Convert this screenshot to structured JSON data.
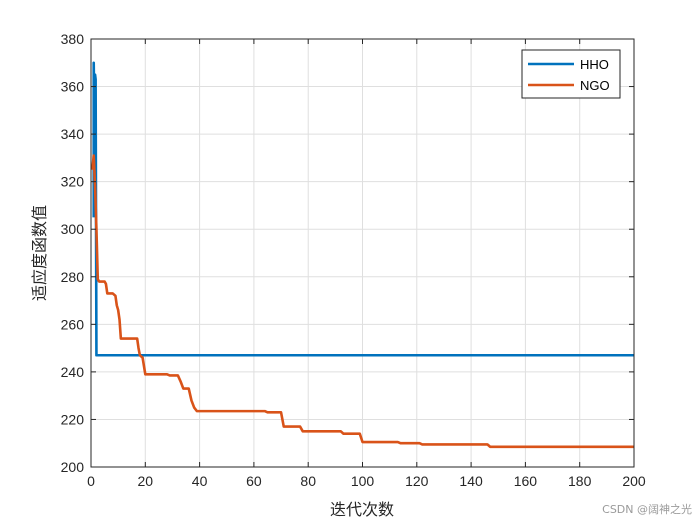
{
  "chart_data": {
    "type": "line",
    "title": "",
    "xlabel": "迭代次数",
    "ylabel": "适应度函数值",
    "xlim": [
      0,
      200
    ],
    "ylim": [
      200,
      380
    ],
    "xticks": [
      0,
      20,
      40,
      60,
      80,
      100,
      120,
      140,
      160,
      180,
      200
    ],
    "yticks": [
      200,
      220,
      240,
      260,
      280,
      300,
      320,
      340,
      360,
      380
    ],
    "grid": true,
    "legend": "top-right",
    "series": [
      {
        "name": "HHO",
        "color": "#0072BD",
        "points": [
          [
            1,
            305
          ],
          [
            1,
            370
          ],
          [
            1.3,
            345
          ],
          [
            1.5,
            365
          ],
          [
            1.7,
            363
          ],
          [
            2,
            247
          ],
          [
            200,
            247
          ]
        ]
      },
      {
        "name": "NGO",
        "color": "#D95319",
        "points": [
          [
            0.5,
            325
          ],
          [
            1,
            331
          ],
          [
            1.5,
            318
          ],
          [
            2,
            300
          ],
          [
            2.5,
            279
          ],
          [
            3,
            278
          ],
          [
            5,
            278
          ],
          [
            5.5,
            277
          ],
          [
            6,
            273
          ],
          [
            8,
            273
          ],
          [
            9,
            272
          ],
          [
            9.5,
            268
          ],
          [
            10,
            266
          ],
          [
            10.5,
            262
          ],
          [
            11,
            254
          ],
          [
            17,
            254
          ],
          [
            17.5,
            250
          ],
          [
            18,
            247
          ],
          [
            19,
            246
          ],
          [
            20,
            239
          ],
          [
            28,
            239
          ],
          [
            29,
            238.5
          ],
          [
            32,
            238.5
          ],
          [
            33,
            236
          ],
          [
            34,
            233
          ],
          [
            36,
            233
          ],
          [
            37,
            228
          ],
          [
            38,
            225
          ],
          [
            39,
            223.5
          ],
          [
            64,
            223.5
          ],
          [
            65,
            223
          ],
          [
            70,
            223
          ],
          [
            71,
            217
          ],
          [
            77,
            217
          ],
          [
            78,
            215
          ],
          [
            92,
            215
          ],
          [
            93,
            214
          ],
          [
            99,
            214
          ],
          [
            100,
            210.5
          ],
          [
            113,
            210.5
          ],
          [
            114,
            210
          ],
          [
            121,
            210
          ],
          [
            122,
            209.5
          ],
          [
            146,
            209.5
          ],
          [
            147,
            208.5
          ],
          [
            200,
            208.5
          ]
        ]
      }
    ]
  },
  "watermark": "CSDN @阔神之光"
}
